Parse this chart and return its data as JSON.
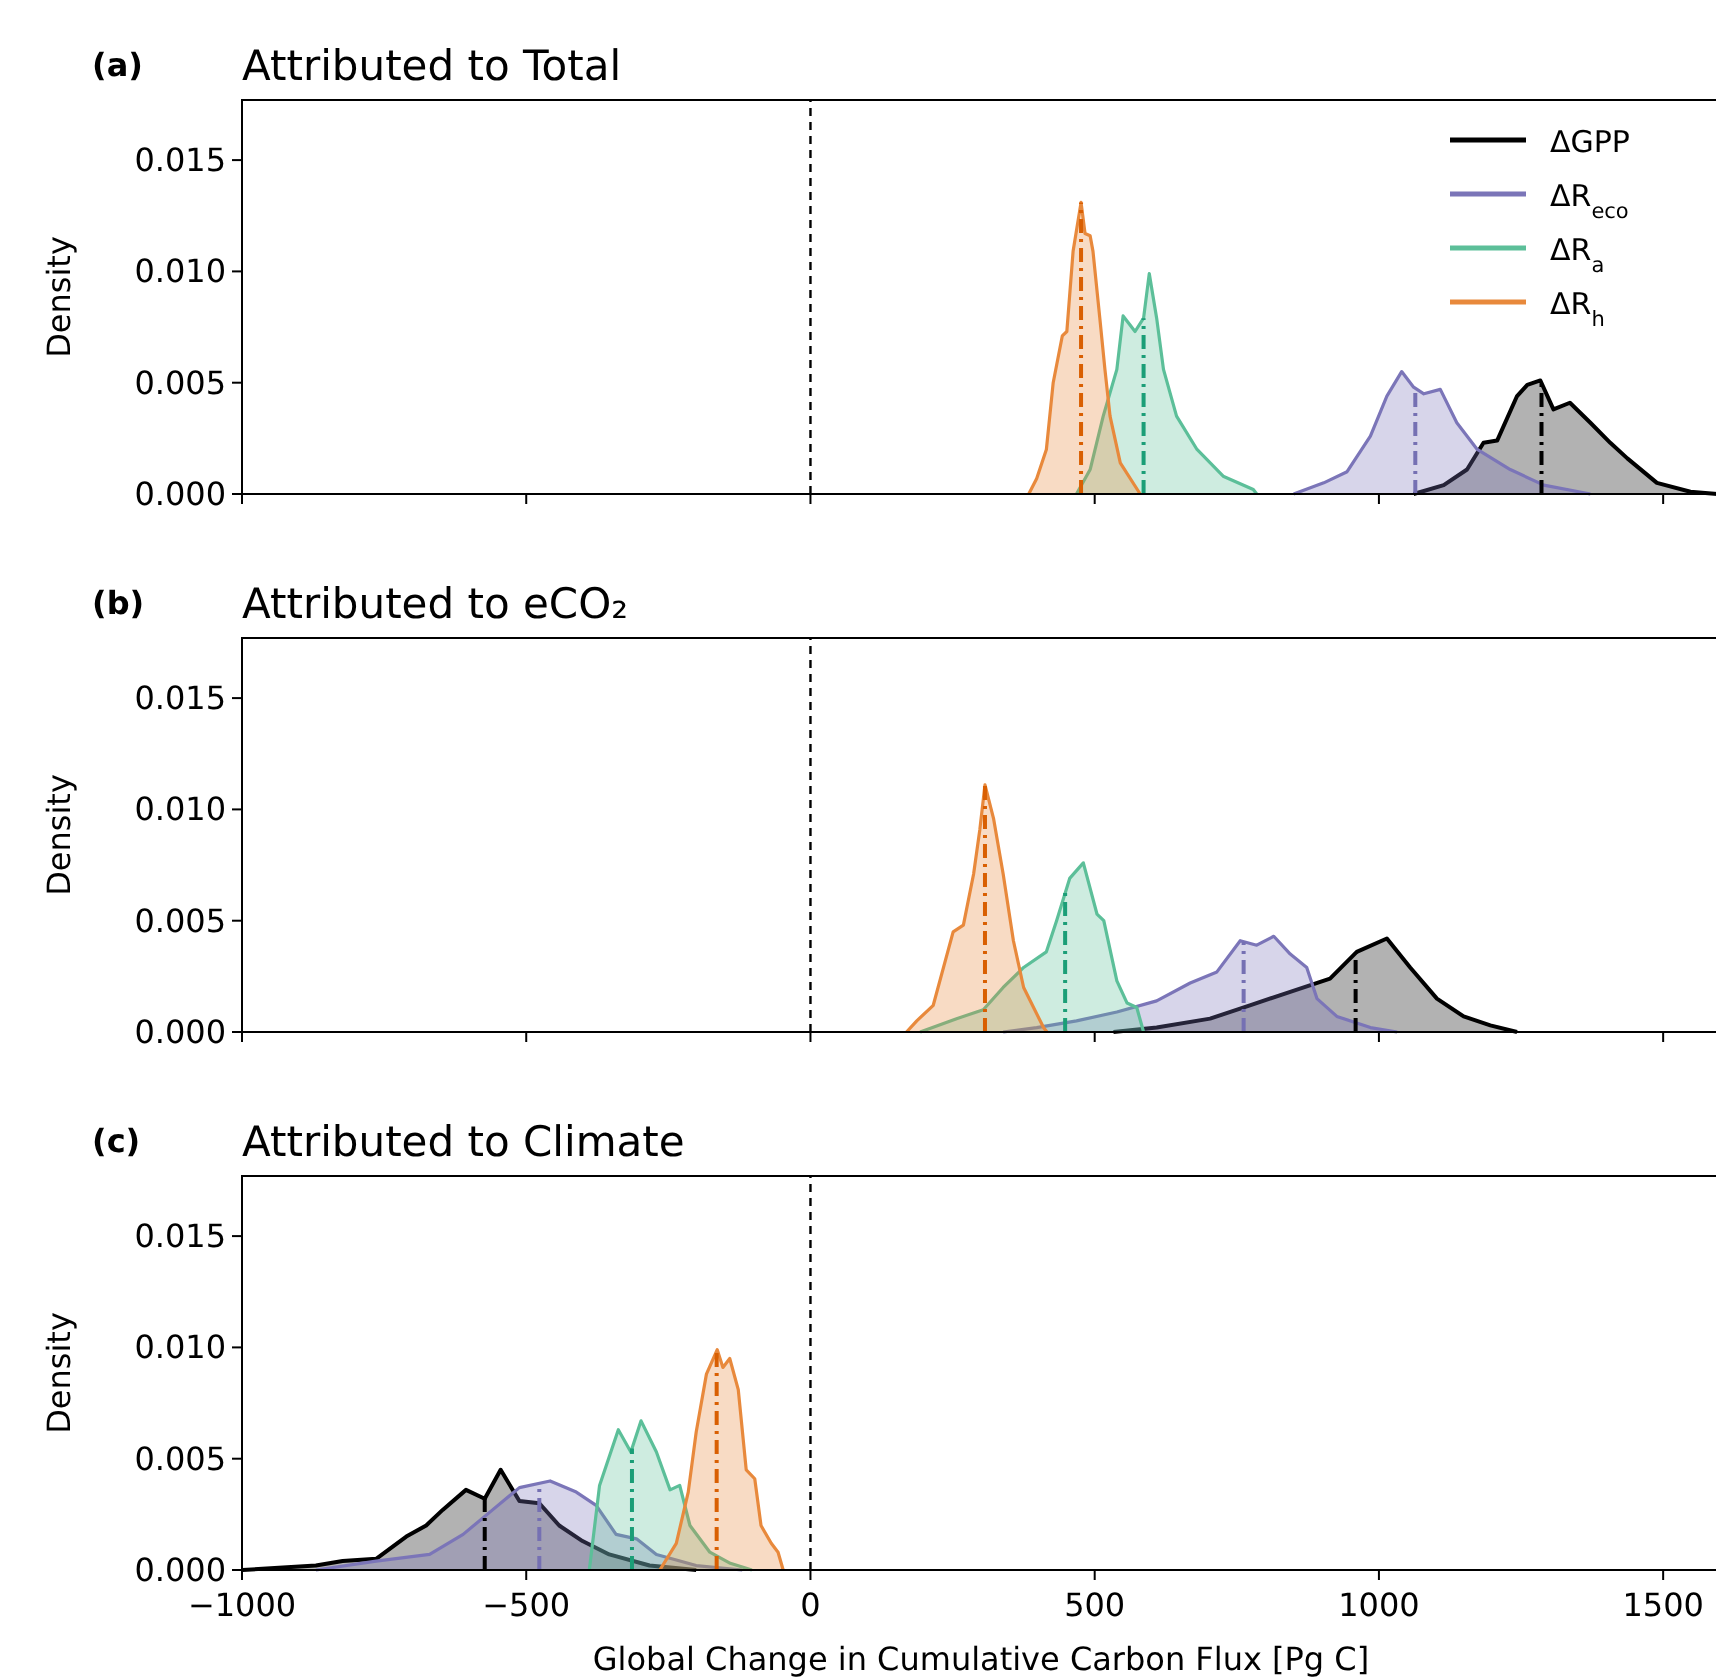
{
  "chart_data": [
    {
      "type": "area",
      "title": "Attributed to Total",
      "annotations": [
        "(a)"
      ],
      "ylabel": "Density",
      "xlim": [
        -1000,
        1600
      ],
      "xticks": [
        -1000,
        -500,
        0,
        500,
        1000,
        1500
      ],
      "ylim": [
        0,
        0.0177
      ],
      "yticks": [
        {
          "value": 0,
          "label": "0.000"
        },
        {
          "value": 0.005,
          "label": "0.005"
        },
        {
          "value": 0.01,
          "label": "0.010"
        },
        {
          "value": 0.015,
          "label": "0.015"
        }
      ],
      "tick_labels": "y",
      "legend": "top right",
      "grid": false,
      "series": [
        {
          "name": "ΔGPP",
          "color": "#000000",
          "x": [
            1061,
            1114,
            1155,
            1184,
            1208,
            1243,
            1261,
            1284,
            1307,
            1336,
            1372,
            1407,
            1437,
            1489,
            1548,
            1595
          ],
          "values": [
            0,
            0.0004,
            0.0011,
            0.0023,
            0.0024,
            0.0044,
            0.0049,
            0.0051,
            0.0038,
            0.0041,
            0.0032,
            0.0023,
            0.0016,
            0.0005,
            0.0001,
            0
          ]
        },
        {
          "name": "ΔR$_{eco}$",
          "color": "#7b75b8",
          "x": [
            850,
            903,
            944,
            985,
            1014,
            1040,
            1061,
            1079,
            1108,
            1137,
            1173,
            1231,
            1290,
            1372
          ],
          "values": [
            0,
            0.0005,
            0.001,
            0.0026,
            0.0044,
            0.0055,
            0.0048,
            0.0045,
            0.0047,
            0.0032,
            0.002,
            0.0011,
            0.0004,
            0
          ]
        },
        {
          "name": "ΔR$_{a}$",
          "color": "#5cbf99",
          "x": [
            468,
            492,
            515,
            539,
            550,
            571,
            586,
            596,
            609,
            621,
            644,
            680,
            726,
            779,
            785
          ],
          "values": [
            0,
            0.0011,
            0.0035,
            0.0056,
            0.008,
            0.0073,
            0.0079,
            0.0099,
            0.0079,
            0.0056,
            0.0035,
            0.002,
            0.0008,
            0.0002,
            0
          ]
        },
        {
          "name": "ΔR$_{h}$",
          "color": "#e8893c",
          "x": [
            384,
            398,
            415,
            427,
            443,
            451,
            462,
            476,
            483,
            492,
            497,
            509,
            518,
            527,
            545,
            580
          ],
          "values": [
            0,
            0.0007,
            0.002,
            0.005,
            0.0071,
            0.0073,
            0.0109,
            0.0131,
            0.0117,
            0.0116,
            0.0109,
            0.0079,
            0.0056,
            0.0035,
            0.0014,
            0
          ]
        }
      ],
      "ref_lines": [
        {
          "axis": "x",
          "value": 1286,
          "color": "#000000",
          "line_style": "dashdot"
        },
        {
          "axis": "x",
          "value": 1064,
          "color": "#7570b3",
          "line_style": "dashdot"
        },
        {
          "axis": "x",
          "value": 586,
          "color": "#1b9e77",
          "line_style": "dashdot"
        },
        {
          "axis": "x",
          "value": 476,
          "color": "#d95f02",
          "line_style": "dashdot"
        },
        {
          "axis": "x",
          "value": 0,
          "color": "#000000",
          "line_style": "dashed"
        }
      ]
    },
    {
      "type": "area",
      "title": "Attributed to eCO₂",
      "annotations": [
        "(b)"
      ],
      "ylabel": "Density",
      "xlim": [
        -1000,
        1600
      ],
      "xticks": [
        -1000,
        -500,
        0,
        500,
        1000,
        1500
      ],
      "ylim": [
        0,
        0.0177
      ],
      "yticks": [
        {
          "value": 0,
          "label": "0.000"
        },
        {
          "value": 0.005,
          "label": "0.005"
        },
        {
          "value": 0.01,
          "label": "0.010"
        },
        {
          "value": 0.015,
          "label": "0.015"
        }
      ],
      "tick_labels": "y",
      "grid": false,
      "series": [
        {
          "color": "#000000",
          "x": [
            533,
            609,
            703,
            773,
            844,
            914,
            961,
            1014,
            1055,
            1102,
            1149,
            1196,
            1243
          ],
          "values": [
            0,
            0.0002,
            0.0006,
            0.0012,
            0.0018,
            0.0024,
            0.0036,
            0.0042,
            0.0029,
            0.0015,
            0.0007,
            0.0003,
            0
          ]
        },
        {
          "color": "#7b75b8",
          "x": [
            339,
            398,
            468,
            539,
            609,
            668,
            715,
            756,
            785,
            815,
            844,
            873,
            891,
            926,
            985,
            1032
          ],
          "values": [
            0,
            0.0002,
            0.0005,
            0.0009,
            0.0014,
            0.0022,
            0.0027,
            0.0041,
            0.0039,
            0.0043,
            0.0035,
            0.0029,
            0.0015,
            0.0007,
            0.0002,
            0
          ]
        },
        {
          "color": "#5cbf99",
          "x": [
            193,
            257,
            304,
            339,
            375,
            415,
            433,
            456,
            480,
            504,
            516,
            539,
            557,
            574,
            586
          ],
          "values": [
            0,
            0.0006,
            0.001,
            0.002,
            0.0029,
            0.0036,
            0.005,
            0.0069,
            0.0076,
            0.0053,
            0.005,
            0.0023,
            0.0013,
            0.0011,
            0
          ]
        },
        {
          "color": "#e8893c",
          "x": [
            169,
            187,
            216,
            251,
            269,
            287,
            298,
            307,
            322,
            339,
            357,
            375,
            410,
            416
          ],
          "values": [
            0,
            0.0005,
            0.0012,
            0.0045,
            0.0048,
            0.0071,
            0.0091,
            0.0111,
            0.0096,
            0.0071,
            0.0041,
            0.002,
            0.0002,
            0
          ]
        }
      ],
      "ref_lines": [
        {
          "axis": "x",
          "value": 959,
          "color": "#000000",
          "line_style": "dashdot"
        },
        {
          "axis": "x",
          "value": 762,
          "color": "#7570b3",
          "line_style": "dashdot"
        },
        {
          "axis": "x",
          "value": 448,
          "color": "#1b9e77",
          "line_style": "dashdot"
        },
        {
          "axis": "x",
          "value": 307,
          "color": "#d95f02",
          "line_style": "dashdot"
        },
        {
          "axis": "x",
          "value": 0,
          "color": "#000000",
          "line_style": "dashed"
        }
      ]
    },
    {
      "type": "area",
      "title": "Attributed to Climate",
      "annotations": [
        "(c)"
      ],
      "ylabel": "Density",
      "xlabel": "Global Change in Cumulative Carbon Flux [Pg C]",
      "xlim": [
        -1000,
        1600
      ],
      "xticks": [
        {
          "value": -1000,
          "label": "−1000"
        },
        {
          "value": -500,
          "label": "−500"
        },
        0,
        500,
        1000,
        1500
      ],
      "ylim": [
        0,
        0.0177
      ],
      "yticks": [
        {
          "value": 0,
          "label": "0.000"
        },
        {
          "value": 0.005,
          "label": "0.005"
        },
        {
          "value": 0.01,
          "label": "0.010"
        },
        {
          "value": 0.015,
          "label": "0.015"
        }
      ],
      "grid": false,
      "series": [
        {
          "color": "#000000",
          "x": [
            -999,
            -870,
            -823,
            -764,
            -711,
            -676,
            -647,
            -606,
            -573,
            -545,
            -512,
            -477,
            -442,
            -401,
            -354,
            -283,
            -201
          ],
          "values": [
            0,
            0.0002,
            0.0004,
            0.0005,
            0.0015,
            0.002,
            0.0027,
            0.0036,
            0.0032,
            0.0045,
            0.0031,
            0.003,
            0.002,
            0.0013,
            0.0007,
            0.0002,
            0
          ]
        },
        {
          "color": "#7b75b8",
          "x": [
            -870,
            -764,
            -670,
            -611,
            -564,
            -512,
            -458,
            -412,
            -377,
            -342,
            -306,
            -271,
            -201,
            -120
          ],
          "values": [
            0,
            0.0004,
            0.0007,
            0.0016,
            0.0026,
            0.0037,
            0.004,
            0.0035,
            0.0029,
            0.0016,
            0.0014,
            0.0007,
            0.0002,
            0
          ]
        },
        {
          "color": "#5cbf99",
          "x": [
            -389,
            -371,
            -338,
            -316,
            -298,
            -271,
            -247,
            -230,
            -212,
            -177,
            -141,
            -103
          ],
          "values": [
            0,
            0.0038,
            0.0063,
            0.0053,
            0.0067,
            0.0053,
            0.0036,
            0.0038,
            0.002,
            0.0008,
            0.0003,
            0
          ]
        },
        {
          "color": "#e8893c",
          "x": [
            -265,
            -236,
            -215,
            -201,
            -183,
            -164,
            -154,
            -142,
            -127,
            -113,
            -98,
            -87,
            -69,
            -57,
            -48
          ],
          "values": [
            0,
            0.0012,
            0.0035,
            0.0062,
            0.0088,
            0.0099,
            0.0091,
            0.0095,
            0.0081,
            0.0045,
            0.0041,
            0.002,
            0.0012,
            0.0008,
            0
          ]
        }
      ],
      "ref_lines": [
        {
          "axis": "x",
          "value": -573,
          "color": "#000000",
          "line_style": "dashdot"
        },
        {
          "axis": "x",
          "value": -477,
          "color": "#7570b3",
          "line_style": "dashdot"
        },
        {
          "axis": "x",
          "value": -314,
          "color": "#1b9e77",
          "line_style": "dashdot"
        },
        {
          "axis": "x",
          "value": -165,
          "color": "#d95f02",
          "line_style": "dashdot"
        },
        {
          "axis": "x",
          "value": 0,
          "color": "#000000",
          "line_style": "dashed"
        }
      ]
    }
  ]
}
